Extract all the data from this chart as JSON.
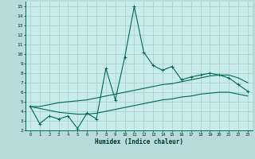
{
  "xlabel": "Humidex (Indice chaleur)",
  "xlim": [
    -0.5,
    23.5
  ],
  "ylim": [
    2,
    15.5
  ],
  "xticks": [
    0,
    1,
    2,
    3,
    4,
    5,
    6,
    7,
    8,
    9,
    10,
    11,
    12,
    13,
    14,
    15,
    16,
    17,
    18,
    19,
    20,
    21,
    22,
    23
  ],
  "yticks": [
    2,
    3,
    4,
    5,
    6,
    7,
    8,
    9,
    10,
    11,
    12,
    13,
    14,
    15
  ],
  "bg_color": "#b8ddd8",
  "plot_bg_color": "#c8ece8",
  "grid_color": "#a8ccc8",
  "line_color": "#006858",
  "line1_x": [
    0,
    1,
    2,
    3,
    4,
    5,
    6,
    7,
    8,
    9,
    10,
    11,
    12,
    13,
    14,
    15,
    16,
    17,
    18,
    19,
    20,
    21,
    22,
    23
  ],
  "line1_y": [
    4.5,
    2.7,
    3.5,
    3.2,
    3.5,
    2.2,
    3.8,
    3.2,
    8.5,
    5.2,
    9.7,
    15.0,
    10.2,
    8.8,
    8.3,
    8.7,
    7.3,
    7.6,
    7.8,
    8.0,
    7.8,
    7.5,
    6.8,
    6.1
  ],
  "line2_x": [
    0,
    1,
    2,
    3,
    4,
    5,
    6,
    7,
    8,
    9,
    10,
    11,
    12,
    13,
    14,
    15,
    16,
    17,
    18,
    19,
    20,
    21,
    22,
    23
  ],
  "line2_y": [
    4.5,
    4.5,
    4.7,
    4.9,
    5.0,
    5.1,
    5.2,
    5.4,
    5.6,
    5.8,
    6.0,
    6.2,
    6.4,
    6.6,
    6.8,
    6.9,
    7.1,
    7.3,
    7.5,
    7.7,
    7.8,
    7.8,
    7.5,
    7.0
  ],
  "line3_x": [
    0,
    1,
    2,
    3,
    4,
    5,
    6,
    7,
    8,
    9,
    10,
    11,
    12,
    13,
    14,
    15,
    16,
    17,
    18,
    19,
    20,
    21,
    22,
    23
  ],
  "line3_y": [
    4.5,
    4.3,
    4.1,
    3.9,
    3.8,
    3.7,
    3.7,
    3.8,
    4.0,
    4.2,
    4.4,
    4.6,
    4.8,
    5.0,
    5.2,
    5.3,
    5.5,
    5.6,
    5.8,
    5.9,
    6.0,
    6.0,
    5.8,
    5.6
  ]
}
